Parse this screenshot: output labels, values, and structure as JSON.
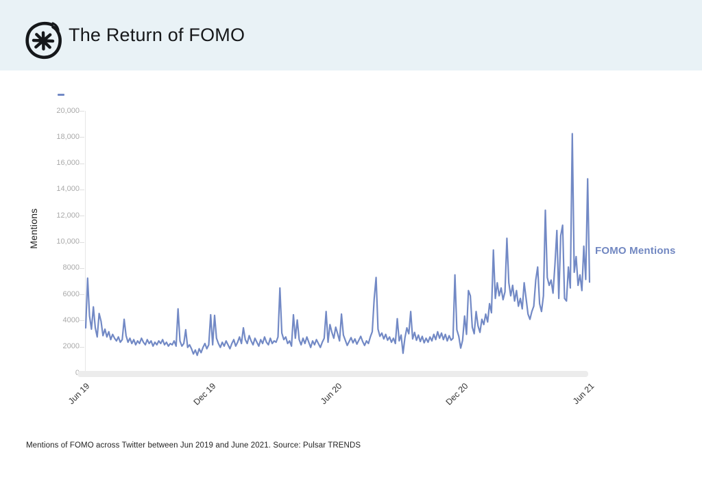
{
  "header": {
    "title": "The Return of FOMO",
    "logo": "pulsar-hand-drawn-asterisk",
    "background_color": "#e9f2f6"
  },
  "chart_data": {
    "type": "line",
    "title": "",
    "ylabel": "Mentions",
    "xlabel": "",
    "series_label": "FOMO Mentions",
    "line_color": "#7289c5",
    "series_label_color": "#7187c1",
    "ylim": [
      0,
      20000
    ],
    "x_range": [
      "Jun 2019",
      "Jun 2021"
    ],
    "grid": false,
    "legend_position": "right-of-line",
    "y_ticks": [
      {
        "v": 0,
        "label": "0"
      },
      {
        "v": 2000,
        "label": "2000"
      },
      {
        "v": 4000,
        "label": "4000"
      },
      {
        "v": 6000,
        "label": "6000"
      },
      {
        "v": 8000,
        "label": "8000"
      },
      {
        "v": 10000,
        "label": "10,000"
      },
      {
        "v": 12000,
        "label": "12,000"
      },
      {
        "v": 14000,
        "label": "14,000"
      },
      {
        "v": 16000,
        "label": "16,000"
      },
      {
        "v": 18000,
        "label": "18,000"
      },
      {
        "v": 20000,
        "label": "20,000"
      }
    ],
    "x_ticks": [
      {
        "pos": 0.0,
        "label": "Jun 19"
      },
      {
        "pos": 0.25,
        "label": "Dec 19"
      },
      {
        "pos": 0.5,
        "label": "Jun 20"
      },
      {
        "pos": 0.75,
        "label": "Dec 20"
      },
      {
        "pos": 1.0,
        "label": "Jun 21"
      }
    ],
    "values": [
      3400,
      7200,
      4300,
      3300,
      5000,
      3400,
      2700,
      4500,
      3900,
      2800,
      3300,
      2700,
      3100,
      2500,
      2900,
      2600,
      2400,
      2700,
      2300,
      2500,
      4050,
      2800,
      2300,
      2600,
      2200,
      2500,
      2100,
      2400,
      2200,
      2600,
      2300,
      2100,
      2500,
      2200,
      2400,
      2000,
      2300,
      2100,
      2400,
      2200,
      2500,
      2100,
      2300,
      2000,
      2200,
      2100,
      2400,
      2000,
      4850,
      2400,
      2000,
      2200,
      3250,
      1900,
      2100,
      1800,
      1400,
      1700,
      1300,
      1800,
      1500,
      1900,
      2200,
      1800,
      2100,
      4400,
      2100,
      4350,
      2600,
      2200,
      1900,
      2300,
      2000,
      2400,
      2100,
      1800,
      2200,
      2500,
      2000,
      2300,
      2700,
      2200,
      3400,
      2500,
      2200,
      2800,
      2400,
      2100,
      2600,
      2300,
      2000,
      2500,
      2200,
      2700,
      2300,
      2100,
      2600,
      2200,
      2400,
      2300,
      2700,
      6450,
      3000,
      2500,
      2700,
      2200,
      2400,
      2000,
      4400,
      2600,
      4000,
      2500,
      2100,
      2600,
      2200,
      2700,
      2300,
      1900,
      2400,
      2100,
      2500,
      2200,
      1900,
      2300,
      2600,
      4650,
      2300,
      3650,
      3050,
      2600,
      3450,
      2950,
      2400,
      4450,
      2850,
      2450,
      2050,
      2350,
      2650,
      2250,
      2550,
      2150,
      2450,
      2750,
      2350,
      2050,
      2400,
      2200,
      2700,
      3100,
      5600,
      7250,
      3300,
      2750,
      3000,
      2550,
      2900,
      2450,
      2700,
      2300,
      2600,
      2200,
      4100,
      2400,
      2850,
      1450,
      2650,
      3400,
      2950,
      4650,
      2550,
      3050,
      2450,
      2850,
      2350,
      2750,
      2250,
      2600,
      2300,
      2700,
      2400,
      2900,
      2500,
      3100,
      2600,
      3000,
      2500,
      2900,
      2400,
      2800,
      2450,
      2600,
      7450,
      3250,
      2750,
      1850,
      2450,
      4300,
      2900,
      6250,
      5850,
      3450,
      2950,
      4650,
      3550,
      3050,
      4050,
      3650,
      4450,
      3850,
      5250,
      4550,
      9350,
      5650,
      6850,
      5850,
      6450,
      5550,
      6150,
      10250,
      6850,
      5850,
      6650,
      5450,
      6250,
      5050,
      5650,
      4850,
      6850,
      5650,
      4450,
      4050,
      4650,
      5050,
      7050,
      8050,
      5250,
      4650,
      5850,
      12400,
      7250,
      6650,
      7050,
      6050,
      8250,
      10850,
      5650,
      10450,
      11250,
      5650,
      5450,
      8050,
      6450,
      18250,
      7650,
      8850,
      6650,
      7450,
      6250,
      9650,
      7100,
      14800,
      6900
    ]
  },
  "caption": {
    "text": "Mentions of FOMO across Twitter between Jun 2019 and June 2021. Source: Pulsar TRENDS"
  }
}
